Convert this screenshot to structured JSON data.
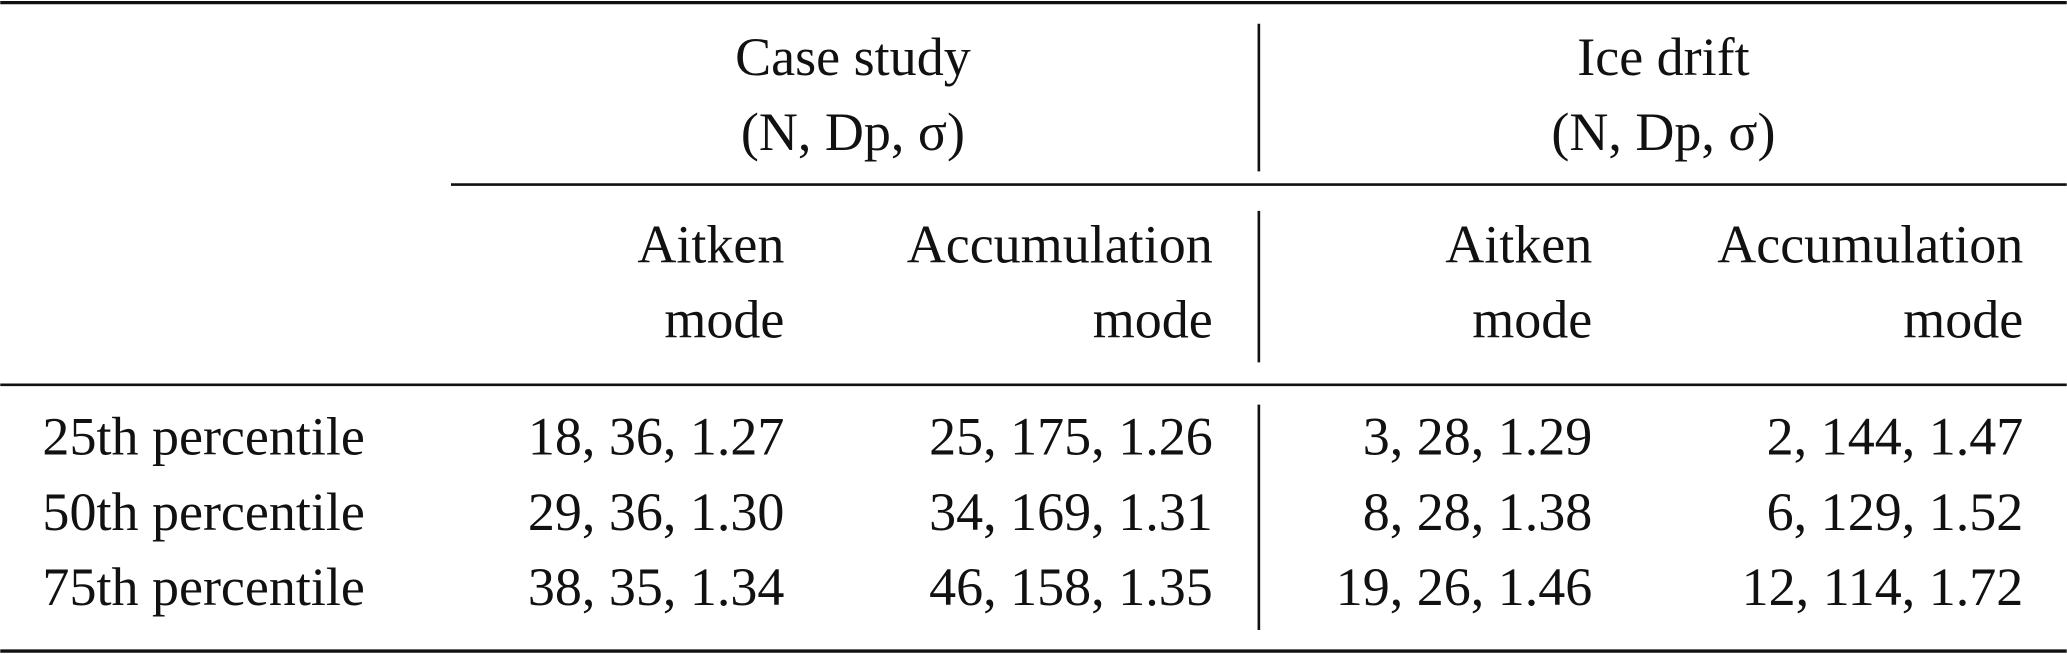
{
  "table": {
    "column_groups": [
      {
        "title": "Case study",
        "subtitle": "(N, Dp, σ)"
      },
      {
        "title": "Ice drift",
        "subtitle": "(N, Dp, σ)"
      }
    ],
    "column_headers": [
      [
        "Aitken",
        "mode"
      ],
      [
        "Accumulation",
        "mode"
      ],
      [
        "Aitken",
        "mode"
      ],
      [
        "Accumulation",
        "mode"
      ]
    ],
    "rows": [
      [
        "25th percentile",
        "18, 36, 1.27",
        "25, 175, 1.26",
        "3, 28, 1.29",
        "2, 144, 1.47"
      ],
      [
        "50th percentile",
        "29, 36, 1.30",
        "34, 169, 1.31",
        "8, 28, 1.38",
        "6, 129, 1.52"
      ],
      [
        "75th percentile",
        "38, 35, 1.34",
        "46, 158, 1.35",
        "19, 26, 1.46",
        "12, 114, 1.72"
      ]
    ]
  }
}
